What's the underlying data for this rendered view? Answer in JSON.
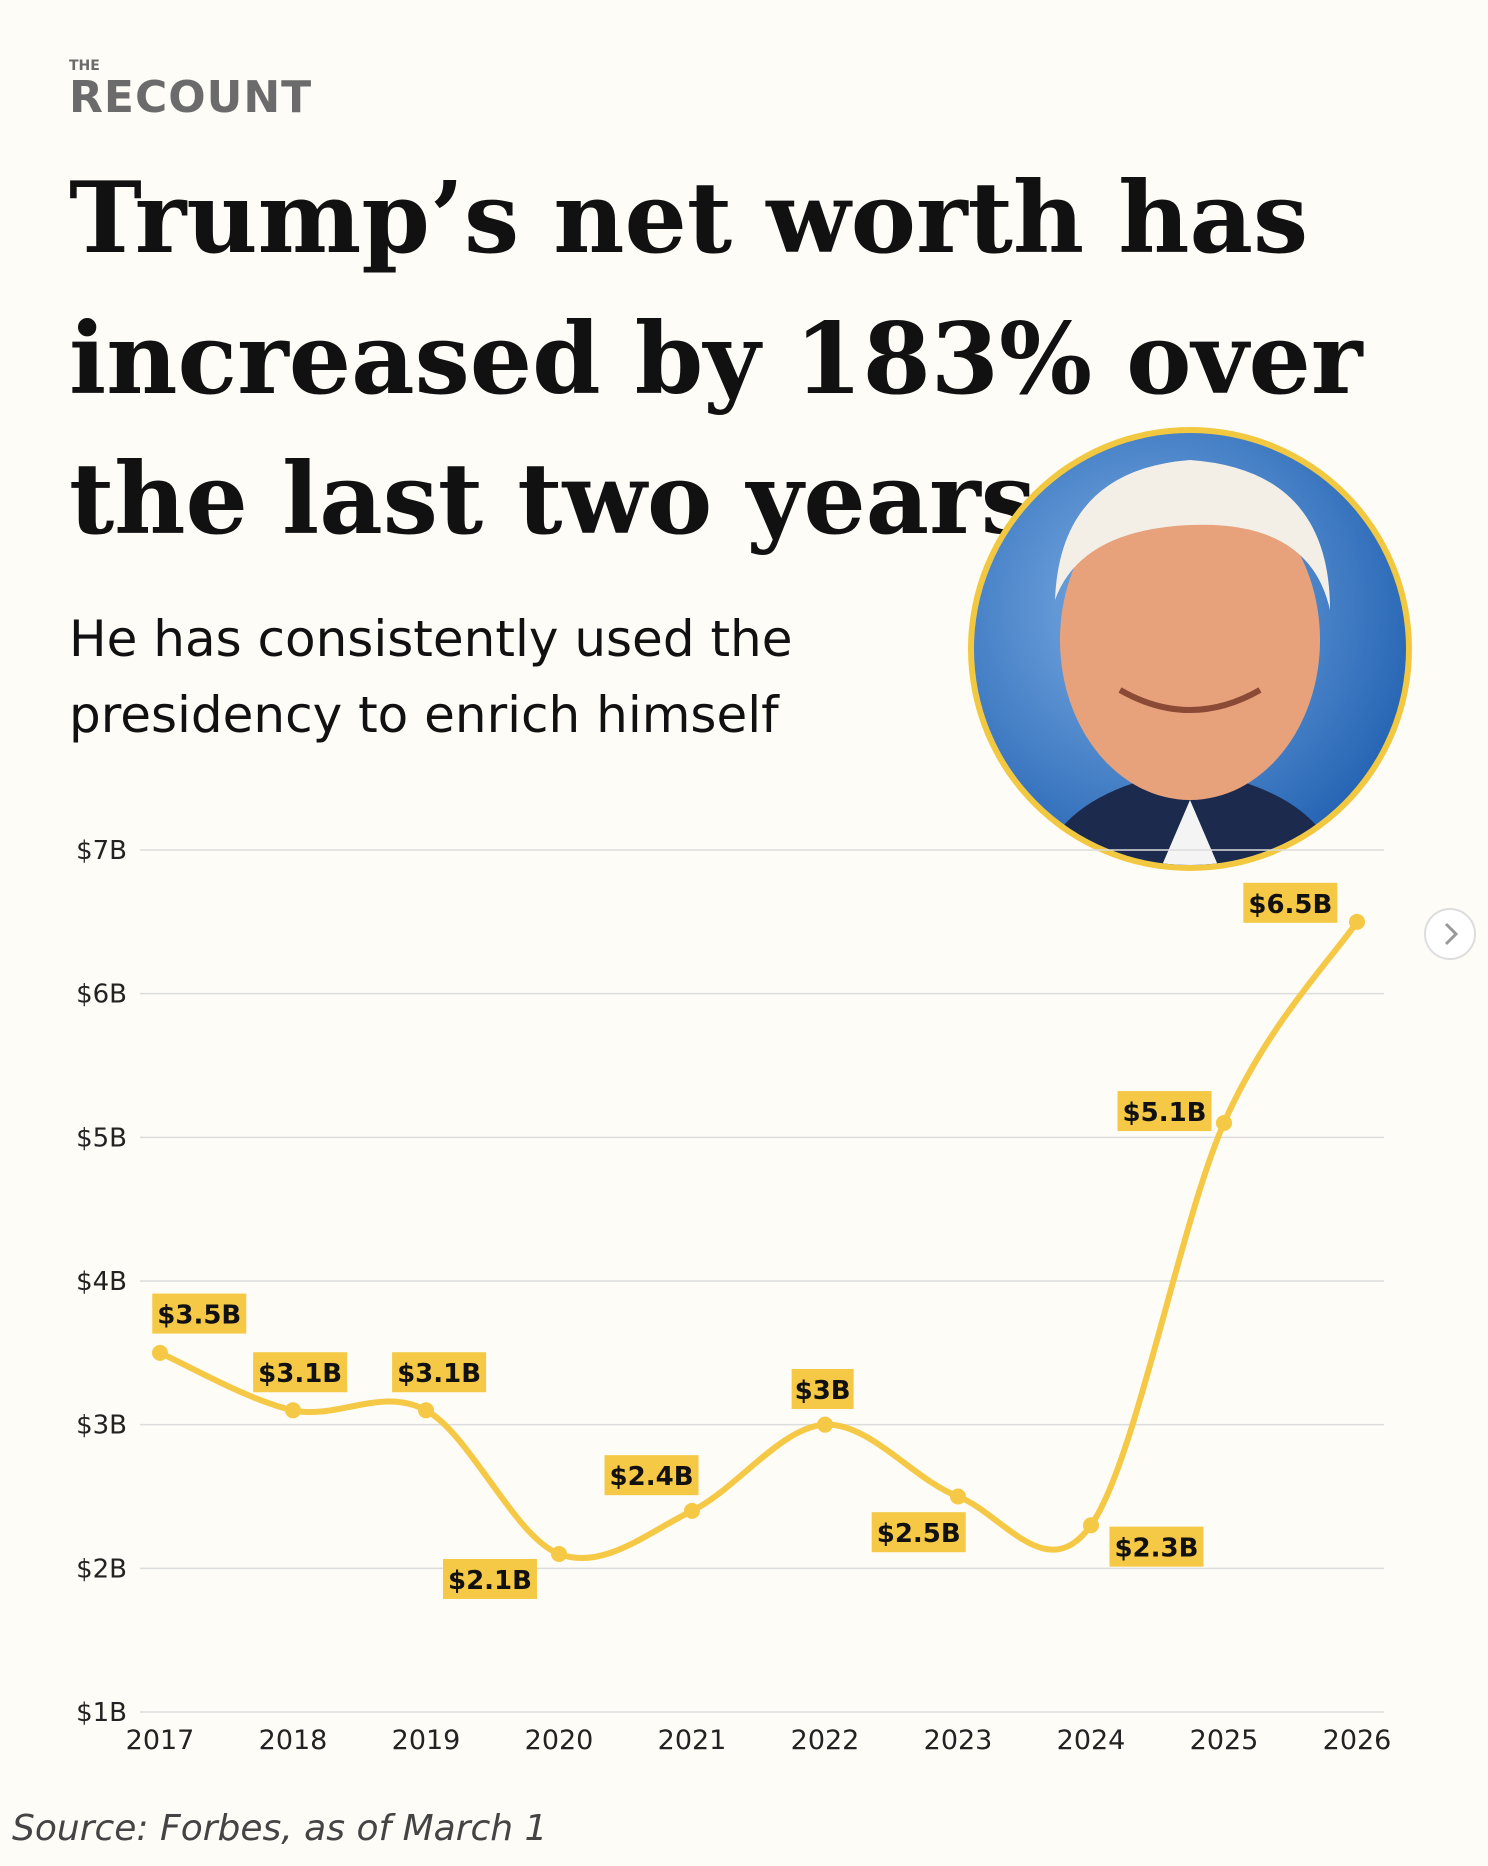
{
  "brand": {
    "small": "THE",
    "name": "RECOUNT"
  },
  "chart_data": {
    "type": "line",
    "title": [
      "Trump’s net worth has",
      "increased by 183% over",
      "the last two years"
    ],
    "subtitle": [
      "He has consistently used the",
      "presidency to enrich himself"
    ],
    "categories": [
      "2017",
      "2018",
      "2019",
      "2020",
      "2021",
      "2022",
      "2023",
      "2024",
      "2025",
      "2026"
    ],
    "series": [
      {
        "name": "Net worth",
        "color": "#f5c945",
        "values": [
          3.5,
          3.1,
          3.1,
          2.1,
          2.4,
          3.0,
          2.5,
          2.3,
          5.1,
          6.5
        ],
        "value_labels": [
          "$3.5B",
          "$3.1B",
          "$3.1B",
          "$2.1B",
          "$2.4B",
          "$3B",
          "$2.5B",
          "$2.3B",
          "$5.1B",
          "$6.5B"
        ]
      }
    ],
    "ylim": [
      1,
      7
    ],
    "yticks": [
      {
        "value": 1,
        "label": "$1B"
      },
      {
        "value": 2,
        "label": "$2B"
      },
      {
        "value": 3,
        "label": "$3B"
      },
      {
        "value": 4,
        "label": "$4B"
      },
      {
        "value": 5,
        "label": "$5B"
      },
      {
        "value": 6,
        "label": "$6B"
      },
      {
        "value": 7,
        "label": "$7B"
      }
    ],
    "grid": true,
    "source": "Source: Forbes, as of March 1"
  }
}
